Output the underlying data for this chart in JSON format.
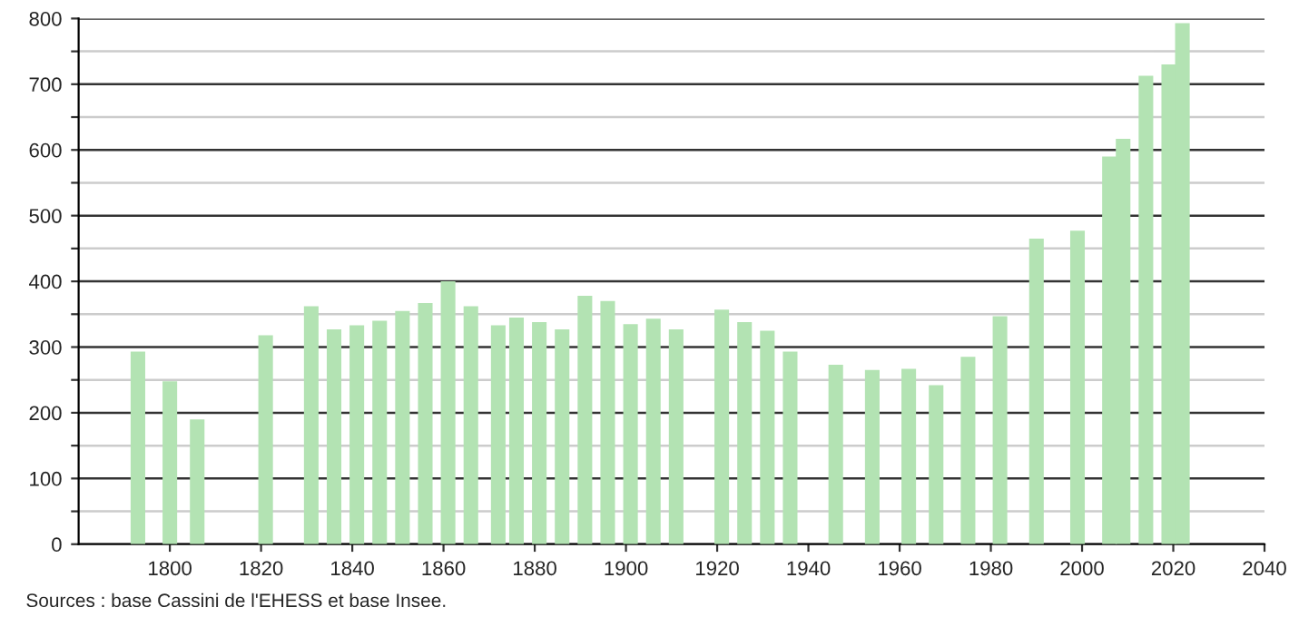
{
  "chart_data": {
    "type": "bar",
    "x": [
      1793,
      1800,
      1806,
      1821,
      1831,
      1836,
      1841,
      1846,
      1851,
      1856,
      1861,
      1866,
      1872,
      1876,
      1881,
      1886,
      1891,
      1896,
      1901,
      1906,
      1911,
      1921,
      1926,
      1931,
      1936,
      1946,
      1954,
      1962,
      1968,
      1975,
      1982,
      1990,
      1999,
      2006,
      2009,
      2014,
      2019,
      2022
    ],
    "values": [
      293,
      248,
      190,
      318,
      362,
      327,
      333,
      340,
      355,
      367,
      400,
      362,
      333,
      345,
      338,
      327,
      378,
      370,
      335,
      343,
      327,
      357,
      338,
      325,
      293,
      273,
      265,
      267,
      242,
      285,
      347,
      465,
      477,
      590,
      617,
      713,
      730,
      793
    ],
    "color": "#b3e3b3",
    "xlim": [
      1780,
      2040
    ],
    "xticks": [
      1800,
      1820,
      1840,
      1860,
      1880,
      1900,
      1920,
      1940,
      1960,
      1980,
      2000,
      2020,
      2040
    ],
    "ylim": [
      0,
      800
    ],
    "yticks": [
      0,
      {
        "value": 50,
        "label": null
      },
      100,
      {
        "value": 150,
        "label": null
      },
      200,
      {
        "value": 250,
        "label": null
      },
      300,
      {
        "value": 350,
        "label": null
      },
      400,
      {
        "value": 450,
        "label": null
      },
      500,
      {
        "value": 550,
        "label": null
      },
      600,
      {
        "value": 650,
        "label": null
      },
      700,
      {
        "value": 750,
        "label": null
      },
      800
    ],
    "grid": "y",
    "annotations": [
      "Sources : base Cassini de l'EHESS et base Insee."
    ]
  }
}
